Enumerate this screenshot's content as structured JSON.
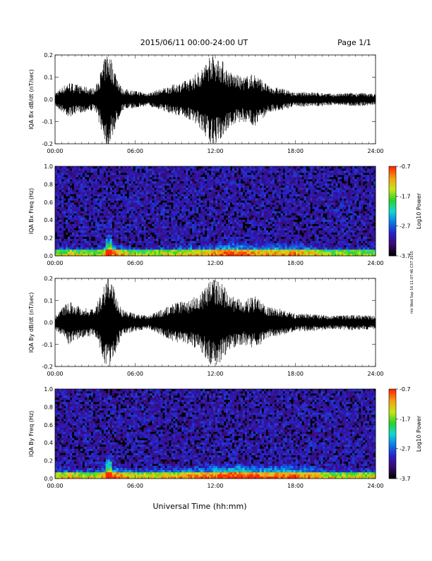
{
  "header": {
    "title": "2015/06/11  00:00-24:00 UT",
    "page": "Page 1/1"
  },
  "footer": {
    "xlabel": "Universal Time (hh:mm)",
    "side_stamp": "rkk Wed Sep 16 11:07:46 CST 2015"
  },
  "colorbar": {
    "label": "Log10 Power",
    "ticks": [
      "-0.7",
      "-1.7",
      "-2.7",
      "-3.7"
    ],
    "range": [
      -3.7,
      -0.7
    ],
    "colors": [
      "#000000",
      "#3a0a70",
      "#2a1fc8",
      "#0a7ae6",
      "#14d6d6",
      "#2ad22a",
      "#c8e614",
      "#f5a014",
      "#ff2a00"
    ]
  },
  "x_ticks": [
    "00:00",
    "06:00",
    "12:00",
    "18:00",
    "24:00"
  ],
  "chart_data": [
    {
      "type": "line",
      "title": "",
      "ylabel": "IQA Bx dB/dt (nT/sec)",
      "xlim": [
        0,
        24
      ],
      "ylim": [
        -0.2,
        0.2
      ],
      "y_ticks": [
        "0.2",
        "0.1",
        "0.0",
        "-0.1",
        "-0.2"
      ],
      "x": [
        0,
        1,
        2,
        3,
        3.9,
        4,
        5,
        6,
        7,
        8,
        9,
        10,
        11,
        11.7,
        12,
        12.5,
        13,
        14,
        15,
        16,
        17,
        18,
        19,
        20,
        21,
        22,
        23,
        24
      ],
      "envelope": [
        0.03,
        0.08,
        0.06,
        0.05,
        0.22,
        0.22,
        0.05,
        0.04,
        0.03,
        0.05,
        0.07,
        0.09,
        0.14,
        0.22,
        0.2,
        0.18,
        0.13,
        0.1,
        0.12,
        0.06,
        0.05,
        0.03,
        0.035,
        0.03,
        0.025,
        0.03,
        0.03,
        0.025
      ]
    },
    {
      "type": "heatmap",
      "ylabel": "IQA Bx Freq (Hz)",
      "xlim": [
        0,
        24
      ],
      "ylim": [
        0,
        1.0
      ],
      "y_ticks": [
        "1.0",
        "0.8",
        "0.6",
        "0.4",
        "0.2",
        "0.0"
      ],
      "z_range": [
        -3.7,
        -0.7
      ],
      "z_label": "Log10 Power",
      "low_freq_activity": [
        0.3,
        0.35,
        0.3,
        0.3,
        0.5,
        0.4,
        0.3,
        0.3,
        0.35,
        0.35,
        0.4,
        0.4,
        0.45,
        0.5,
        0.5,
        0.45,
        0.45,
        0.45,
        0.45,
        0.4,
        0.35,
        0.3,
        0.3,
        0.3,
        0.3
      ]
    },
    {
      "type": "line",
      "title": "",
      "ylabel": "IQA By dB/dt (nT/sec)",
      "xlim": [
        0,
        24
      ],
      "ylim": [
        -0.2,
        0.2
      ],
      "y_ticks": [
        "0.2",
        "0.1",
        "0.0",
        "-0.1",
        "-0.2"
      ],
      "x": [
        0,
        1,
        2,
        3,
        3.9,
        4,
        5,
        6,
        7,
        8,
        9,
        10,
        11,
        11.7,
        12,
        12.5,
        13,
        14,
        15,
        16,
        17,
        18,
        19,
        20,
        21,
        22,
        23,
        24
      ],
      "envelope": [
        0.03,
        0.1,
        0.07,
        0.06,
        0.22,
        0.22,
        0.06,
        0.04,
        0.03,
        0.06,
        0.09,
        0.1,
        0.14,
        0.2,
        0.2,
        0.18,
        0.13,
        0.1,
        0.12,
        0.07,
        0.06,
        0.04,
        0.04,
        0.035,
        0.03,
        0.035,
        0.035,
        0.03
      ]
    },
    {
      "type": "heatmap",
      "ylabel": "IQA By Freq (Hz)",
      "xlim": [
        0,
        24
      ],
      "ylim": [
        0,
        1.0
      ],
      "y_ticks": [
        "1.0",
        "0.8",
        "0.6",
        "0.4",
        "0.2",
        "0.0"
      ],
      "z_range": [
        -3.7,
        -0.7
      ],
      "z_label": "Log10 Power",
      "low_freq_activity": [
        0.35,
        0.4,
        0.35,
        0.35,
        0.55,
        0.45,
        0.35,
        0.35,
        0.4,
        0.4,
        0.45,
        0.45,
        0.5,
        0.55,
        0.55,
        0.5,
        0.5,
        0.5,
        0.5,
        0.45,
        0.4,
        0.35,
        0.35,
        0.35,
        0.35
      ]
    }
  ]
}
